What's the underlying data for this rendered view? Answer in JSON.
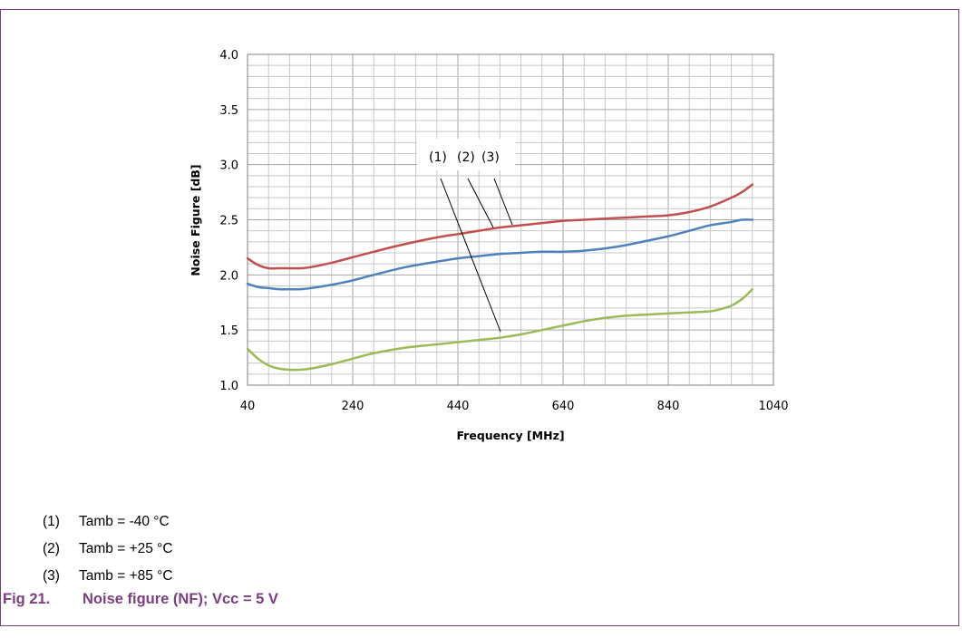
{
  "colors": {
    "frame": "#7b3f80",
    "caption": "#7b3f80",
    "grid_major": "#a6a6a6",
    "grid_minor": "#c8c8c8"
  },
  "chart_data": {
    "type": "line",
    "title": "",
    "xlabel": "Frequency [MHz]",
    "ylabel": "Noise Figure [dB]",
    "xlim": [
      40,
      1040
    ],
    "ylim": [
      1.0,
      4.0
    ],
    "xticks": [
      40,
      240,
      440,
      640,
      840,
      1040
    ],
    "yticks": [
      1.0,
      1.5,
      2.0,
      2.5,
      3.0,
      3.5,
      4.0
    ],
    "xtick_labels": [
      "40",
      "240",
      "440",
      "640",
      "840",
      "1040"
    ],
    "ytick_labels": [
      "1.0",
      "1.5",
      "2.0",
      "2.5",
      "3.0",
      "3.5",
      "4.0"
    ],
    "grid": true,
    "minor_grid": {
      "x_step": 40,
      "y_step": 0.1
    },
    "legend": "none",
    "callout_labels": [
      "(1)",
      "(2)",
      "(3)"
    ],
    "series": [
      {
        "id": "1",
        "color": "#9bbb59",
        "x": [
          40,
          60,
          80,
          100,
          120,
          140,
          160,
          200,
          240,
          280,
          340,
          400,
          440,
          480,
          520,
          560,
          600,
          640,
          680,
          720,
          760,
          800,
          840,
          880,
          920,
          940,
          960,
          980,
          1000
        ],
        "y": [
          1.33,
          1.24,
          1.18,
          1.15,
          1.14,
          1.14,
          1.15,
          1.19,
          1.24,
          1.29,
          1.34,
          1.37,
          1.39,
          1.41,
          1.43,
          1.46,
          1.5,
          1.54,
          1.58,
          1.61,
          1.63,
          1.64,
          1.65,
          1.66,
          1.67,
          1.69,
          1.72,
          1.78,
          1.87
        ]
      },
      {
        "id": "2",
        "color": "#4f81bd",
        "x": [
          40,
          60,
          80,
          100,
          120,
          140,
          160,
          200,
          240,
          280,
          340,
          400,
          440,
          480,
          520,
          560,
          600,
          640,
          680,
          720,
          760,
          800,
          840,
          880,
          920,
          960,
          980,
          1000
        ],
        "y": [
          1.92,
          1.89,
          1.88,
          1.87,
          1.87,
          1.87,
          1.88,
          1.91,
          1.95,
          2.0,
          2.07,
          2.12,
          2.15,
          2.17,
          2.19,
          2.2,
          2.21,
          2.21,
          2.22,
          2.24,
          2.27,
          2.31,
          2.35,
          2.4,
          2.45,
          2.48,
          2.5,
          2.5
        ]
      },
      {
        "id": "3",
        "color": "#c0504d",
        "x": [
          40,
          60,
          80,
          100,
          120,
          140,
          160,
          200,
          240,
          280,
          340,
          400,
          440,
          480,
          520,
          560,
          600,
          640,
          680,
          720,
          760,
          800,
          840,
          880,
          920,
          960,
          980,
          1000
        ],
        "y": [
          2.15,
          2.09,
          2.06,
          2.06,
          2.06,
          2.06,
          2.07,
          2.11,
          2.16,
          2.21,
          2.28,
          2.34,
          2.37,
          2.4,
          2.43,
          2.45,
          2.47,
          2.49,
          2.5,
          2.51,
          2.52,
          2.53,
          2.54,
          2.57,
          2.62,
          2.7,
          2.75,
          2.82
        ]
      }
    ]
  },
  "legend": {
    "items": [
      {
        "num": "(1)",
        "text": "Tamb = -40 °C"
      },
      {
        "num": "(2)",
        "text": "Tamb = +25 °C"
      },
      {
        "num": "(3)",
        "text": "Tamb = +85 °C"
      }
    ]
  },
  "caption": {
    "number": "Fig 21.",
    "text": "Noise figure (NF); Vcc = 5 V"
  }
}
